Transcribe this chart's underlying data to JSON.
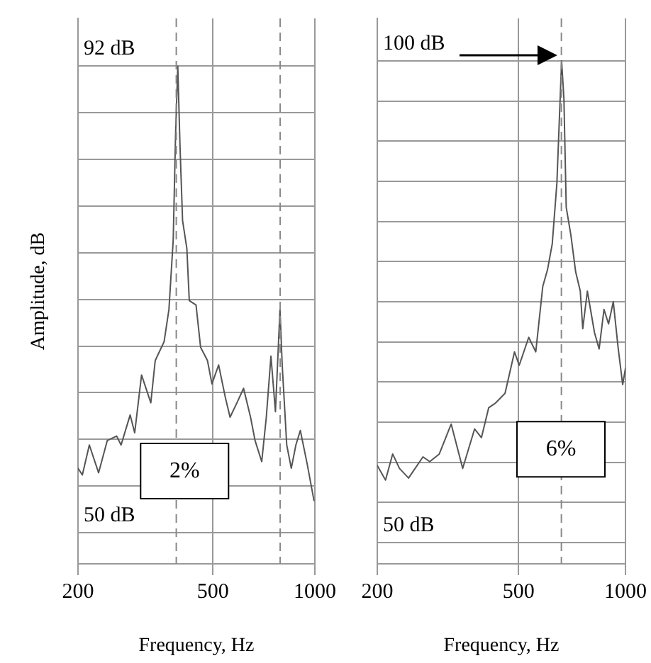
{
  "chart_data": [
    {
      "type": "line",
      "ylabel": "Amplitude, dB",
      "xlabel": "Frequency, Hz",
      "log": "x",
      "grid": true,
      "color": "#555555",
      "x": [
        200,
        206,
        216,
        230,
        244,
        260,
        268,
        285,
        294,
        308,
        328,
        338,
        359,
        371,
        382,
        388,
        394,
        400,
        407,
        419,
        426,
        446,
        460,
        482,
        497,
        520,
        545,
        562,
        589,
        616,
        646,
        666,
        697,
        719,
        742,
        765,
        789,
        801,
        826,
        852,
        879,
        906,
        949,
        994
      ],
      "values": [
        55.8,
        55.2,
        57.9,
        55.4,
        58.3,
        58.7,
        57.9,
        60.6,
        59.0,
        64.2,
        61.7,
        65.5,
        67.2,
        70.1,
        76.4,
        85.7,
        92,
        84.8,
        78.1,
        75.6,
        70.9,
        70.5,
        66.7,
        65.5,
        63.4,
        65.1,
        62.1,
        60.4,
        61.7,
        63.0,
        60.4,
        58.3,
        56.4,
        60.4,
        65.9,
        60.9,
        70.1,
        65.1,
        57.9,
        55.8,
        57.9,
        59.2,
        56.2,
        52.9
      ],
      "xlim": [
        200,
        1000
      ],
      "xticks": [
        200,
        500,
        1000
      ],
      "ylim": [
        47.2,
        96.3
      ],
      "yticks": [
        {
          "value": 50,
          "label": "50 dB"
        },
        {
          "value": 54.2,
          "label": null
        },
        {
          "value": 58.4,
          "label": null
        },
        {
          "value": 62.6,
          "label": null
        },
        {
          "value": 66.8,
          "label": null
        },
        {
          "value": 71,
          "label": null
        },
        {
          "value": 75.2,
          "label": null
        },
        {
          "value": 79.4,
          "label": null
        },
        {
          "value": 83.6,
          "label": null
        },
        {
          "value": 87.8,
          "label": null
        },
        {
          "value": 92,
          "label": "92 dB"
        }
      ],
      "ref_lines": [
        {
          "axis": "x",
          "value": 390,
          "line_style": "dashed"
        },
        {
          "axis": "x",
          "value": 790,
          "line_style": "dashed"
        }
      ],
      "annotations": [
        "2%"
      ]
    },
    {
      "type": "line",
      "xlabel": "Frequency, Hz",
      "log": "x",
      "grid": true,
      "color": "#555555",
      "x": [
        200,
        211,
        221,
        231,
        245,
        269,
        281,
        299,
        323,
        348,
        376,
        393,
        412,
        431,
        458,
        487,
        502,
        534,
        559,
        585,
        603,
        622,
        641,
        661,
        671,
        681,
        702,
        724,
        746,
        758,
        781,
        818,
        843,
        870,
        896,
        924,
        953,
        982,
        1000
      ],
      "values": [
        58.0,
        56.5,
        59.2,
        57.7,
        56.7,
        58.9,
        58.4,
        59.2,
        62.3,
        57.7,
        61.8,
        60.9,
        64.0,
        64.5,
        65.5,
        69.8,
        68.4,
        71.3,
        69.8,
        76.6,
        78.3,
        81.0,
        87.3,
        100,
        96.0,
        84.8,
        81.9,
        78.1,
        76.1,
        72.2,
        76.1,
        71.8,
        70.1,
        74.2,
        72.7,
        75.0,
        70.3,
        66.4,
        68.1
      ],
      "xlim": [
        200,
        1000
      ],
      "xticks": [
        200,
        500,
        1000
      ],
      "ylim": [
        47.8,
        104.4
      ],
      "yticks": [
        {
          "value": 50,
          "label": "50 dB"
        },
        {
          "value": 54.2,
          "label": null
        },
        {
          "value": 58.3,
          "label": null
        },
        {
          "value": 62.5,
          "label": null
        },
        {
          "value": 66.7,
          "label": null
        },
        {
          "value": 70.8,
          "label": null
        },
        {
          "value": 75,
          "label": null
        },
        {
          "value": 79.2,
          "label": null
        },
        {
          "value": 83.3,
          "label": null
        },
        {
          "value": 87.5,
          "label": null
        },
        {
          "value": 91.7,
          "label": null
        },
        {
          "value": 95.8,
          "label": null
        },
        {
          "value": 100,
          "label": "100 dB"
        }
      ],
      "ref_lines": [
        {
          "axis": "x",
          "value": 660,
          "line_style": "dashed"
        }
      ],
      "annotations": [
        "6%"
      ]
    }
  ]
}
